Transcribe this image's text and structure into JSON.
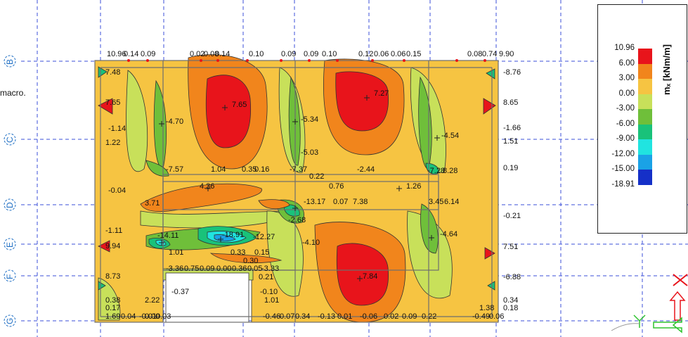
{
  "side_text": "macro.",
  "axis_labels": [
    "B",
    "C",
    "D",
    "E",
    "F",
    "G"
  ],
  "legend": {
    "title": "mₓ [kNm/m]",
    "values": [
      "10.96",
      "6.00",
      "3.00",
      "0.00",
      "-3.00",
      "-6.00",
      "-9.00",
      "-12.00",
      "-15.00",
      "-18.91"
    ],
    "colors": [
      "#e8141b",
      "#f1851c",
      "#f6c442",
      "#c8e05a",
      "#6fbf3a",
      "#19c27a",
      "#20e4e0",
      "#1aa2e6",
      "#1530c8"
    ]
  },
  "plot_labels": {
    "l01": "10.96",
    "l02": "0.14",
    "l03": "0.09",
    "l04": "0.02",
    "l05": "0.08",
    "l06": "0.14",
    "l07": "0.10",
    "l08": "0.09",
    "l09": "0.09",
    "l10": "0.10",
    "l11": "0.12",
    "l12": "0.06",
    "l13": "0.06",
    "l14": "0.15",
    "l15": "0.08",
    "l16": "0.74",
    "l17": "9.90",
    "l18": "7.48",
    "l19": "-8.76",
    "l20": "7.65",
    "l21": "7.65",
    "l22": "7.27",
    "l23": "8.65",
    "l24": "-4.70",
    "l25": "-5.34",
    "l26": "-1.14",
    "l27": "1.22",
    "l28": "-4.54",
    "l29": "-1.66",
    "l30": "1.51",
    "l31": "-5.03",
    "l32": "-7.57",
    "l33": "1.04",
    "l34": "0.35",
    "l35": "0.16",
    "l36": "-7.37",
    "l37": "0.22",
    "l38": "-2.44",
    "l39": "0.19",
    "l40": "-7.28",
    "l41": "8.28",
    "l42": "4.36",
    "l43": "0.76",
    "l44": "1.26",
    "l45": "-0.04",
    "l46": "3.71",
    "l47": "-13.17",
    "l48": "0.07",
    "l49": "7.38",
    "l50": "3.45",
    "l51": "6.14",
    "l52": "-2.68",
    "l53": "-0.21",
    "l54": "-1.11",
    "l55": "-14.11",
    "l56": "-18.91",
    "l57": "-12.27",
    "l58": "-4.64",
    "l59": "9.94",
    "l60": "1.01",
    "l61": "0.33",
    "l62": "0.15",
    "l63": "-4.10",
    "l64": "7.51",
    "l65": "0.30",
    "l66": "-3.36",
    "l67": "0.75",
    "l68": "0.09",
    "l69": "0.00",
    "l70": "0.36",
    "l71": "0.05",
    "l72": "-3.33",
    "l73": "8.73",
    "l74": "0.21",
    "l75": "7.84",
    "l76": "-6.88",
    "l77": "-0.37",
    "l78": "-0.10",
    "l79": "0.38",
    "l80": "2.22",
    "l81": "1.01",
    "l82": "0.34",
    "l83": "0.17",
    "l84": "0.18",
    "l85": "1.38",
    "l86": "1.69",
    "l87": "0.04",
    "l88": "-0.01",
    "l89": "0.00",
    "l90": "0.03",
    "l91": "-0.46",
    "l92": "0.07",
    "l93": "0.34",
    "l94": "-0.13",
    "l95": "0.01",
    "l96": "-0.06",
    "l97": "0.02",
    "l98": "0.09",
    "l99": "0.22",
    "l100": "-0.49",
    "l101": "0.06"
  }
}
